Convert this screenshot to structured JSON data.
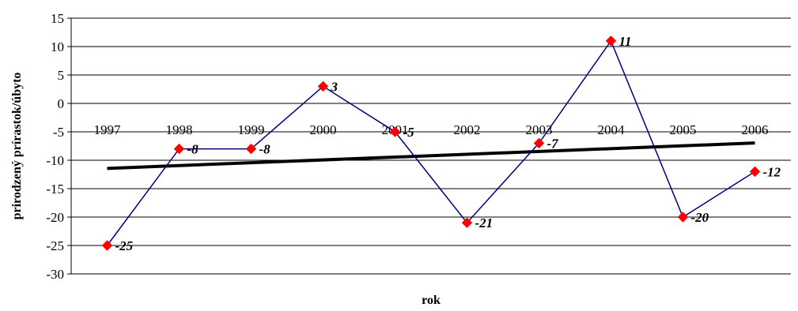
{
  "chart_data": {
    "type": "line",
    "title": "",
    "xlabel": "rok",
    "ylabel": "prirodzený prírastok/úbyto",
    "categories": [
      "1997",
      "1998",
      "1999",
      "2000",
      "2001",
      "2002",
      "2003",
      "2004",
      "2005",
      "2006"
    ],
    "series": [
      {
        "values": [
          -25,
          -8,
          -8,
          3,
          -5,
          -21,
          -7,
          11,
          -20,
          -12
        ],
        "color": "#000080",
        "marker": "diamond",
        "marker_color": "#ff0000"
      }
    ],
    "data_labels": [
      "-25",
      "-8",
      "-8",
      "3",
      "-5",
      "-21",
      "-7",
      "11",
      "-20",
      "-12"
    ],
    "trendline": {
      "type": "linear",
      "color": "#000000"
    },
    "ylim": [
      -30,
      15
    ],
    "yticks": [
      "15",
      "10",
      "5",
      "0",
      "-5",
      "-10",
      "-15",
      "-20",
      "-25",
      "-30"
    ],
    "grid": true,
    "legend": "none"
  }
}
